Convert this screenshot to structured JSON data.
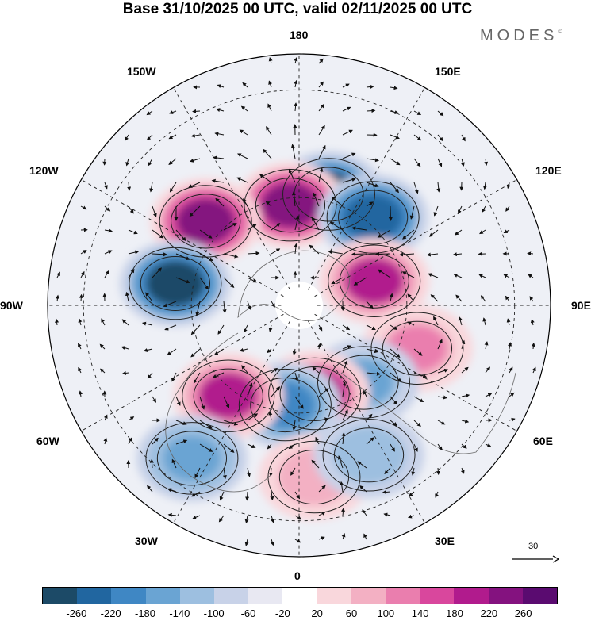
{
  "title": "Base 31/10/2025 00 UTC, valid 02/11/2025 00 UTC",
  "brand": "MODES",
  "brand_mark": "©",
  "longitude_labels": {
    "l180": "180",
    "l150e": "150E",
    "l120e": "120E",
    "l90e": "90E",
    "l60e": "60E",
    "l30e": "30E",
    "l0": "0",
    "l30w": "30W",
    "l60w": "60W",
    "l90w": "90W",
    "l120w": "120W",
    "l150w": "150W"
  },
  "reference_vector": {
    "value": "30"
  },
  "colorbar": {
    "colors": [
      "#1c4a67",
      "#2166a0",
      "#3f87c4",
      "#6aa4d3",
      "#9dbfe0",
      "#c8d2e8",
      "#e8e8f2",
      "#ffffff",
      "#f9d7dc",
      "#f3b0c3",
      "#ea7eae",
      "#d9479d",
      "#b11b8d",
      "#84127f",
      "#5a0b70"
    ],
    "ticks": [
      "-260",
      "-220",
      "-180",
      "-140",
      "-100",
      "-60",
      "-20",
      "20",
      "60",
      "100",
      "140",
      "180",
      "220",
      "260"
    ]
  },
  "anomaly_cells": [
    {
      "lon": 165,
      "lat": 58,
      "value": -260
    },
    {
      "lon": -175,
      "lat": 62,
      "value": 240
    },
    {
      "lon": 140,
      "lat": 58,
      "value": -240
    },
    {
      "lon": -132,
      "lat": 55,
      "value": 250
    },
    {
      "lon": -100,
      "lat": 55,
      "value": -250
    },
    {
      "lon": 108,
      "lat": 68,
      "value": 200
    },
    {
      "lon": 70,
      "lat": 55,
      "value": 120
    },
    {
      "lon": 40,
      "lat": 62,
      "value": -140
    },
    {
      "lon": 10,
      "lat": 65,
      "value": 210
    },
    {
      "lon": -8,
      "lat": 62,
      "value": -190
    },
    {
      "lon": -38,
      "lat": 58,
      "value": 200
    },
    {
      "lon": -35,
      "lat": 38,
      "value": -150
    },
    {
      "lon": 5,
      "lat": 42,
      "value": 100
    },
    {
      "lon": 25,
      "lat": 44,
      "value": -110
    }
  ]
}
